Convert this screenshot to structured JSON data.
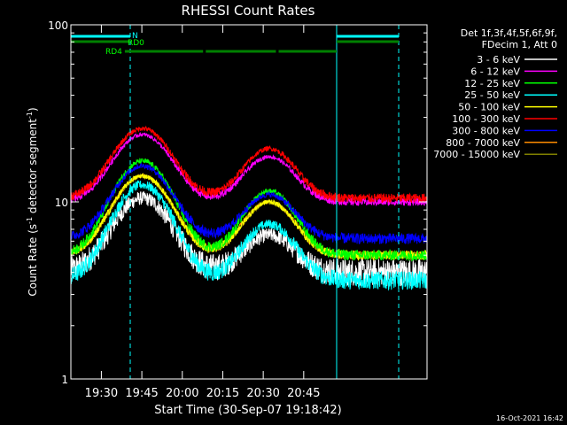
{
  "chart_data": {
    "type": "line",
    "title": "RHESSI Count Rates",
    "xlabel": "Start Time (30-Sep-07 19:18:42)",
    "ylabel_main": "Count Rate (s",
    "ylabel_sup": "-1",
    "ylabel_end": " detector segment",
    "ylabel_sup2": "-1",
    "ylabel_close": ")",
    "yscale": "log",
    "ylim": [
      1,
      100
    ],
    "y_ticks": [
      {
        "value": 1,
        "label": "1"
      },
      {
        "value": 10,
        "label": "10"
      },
      {
        "value": 100,
        "label": "100"
      }
    ],
    "x_range_min": [
      0,
      132
    ],
    "x_ticks": [
      {
        "min": 11.3,
        "label": "19:30"
      },
      {
        "min": 26.3,
        "label": "19:45"
      },
      {
        "min": 41.3,
        "label": "20:00"
      },
      {
        "min": 56.3,
        "label": "20:15"
      },
      {
        "min": 71.3,
        "label": "20:30"
      },
      {
        "min": 86.3,
        "label": "20:45"
      }
    ],
    "legend_header": [
      "Det 1f,3f,4f,5f,6f,9f,",
      "FDecim 1, Att 0"
    ],
    "legend_placement": "right",
    "series": [
      {
        "name": "3 - 6 keV",
        "color": "#ffffff",
        "base": 4.0,
        "peak1": 10.5,
        "peak2": 6.5,
        "noise": 0.18
      },
      {
        "name": "6 - 12 keV",
        "color": "#ff00ff",
        "base": 10.0,
        "peak1": 24,
        "peak2": 18,
        "noise": 0.05
      },
      {
        "name": "12 - 25 keV",
        "color": "#00ff00",
        "base": 5.0,
        "peak1": 17,
        "peak2": 11.5,
        "noise": 0.07
      },
      {
        "name": "25 - 50 keV",
        "color": "#00ffff",
        "base": 3.6,
        "peak1": 12.5,
        "peak2": 7.5,
        "noise": 0.12
      },
      {
        "name": "50 - 100 keV",
        "color": "#ffff00",
        "base": 5.0,
        "peak1": 14,
        "peak2": 10,
        "noise": 0.06
      },
      {
        "name": "100 - 300 keV",
        "color": "#ff0000",
        "base": 10.5,
        "peak1": 26,
        "peak2": 20,
        "noise": 0.06
      },
      {
        "name": "300 - 800 keV",
        "color": "#0000ff",
        "base": 6.2,
        "peak1": 16,
        "peak2": 11,
        "noise": 0.07
      },
      {
        "name": "800 - 7000 keV",
        "color": "#ff8c00",
        "base": 5.0,
        "peak1": 14,
        "peak2": 10,
        "noise": 0.05
      },
      {
        "name": "7000 - 15000 keV",
        "color": "#808000",
        "base": 5.0,
        "peak1": 14,
        "peak2": 10,
        "noise": 0.05
      }
    ],
    "peaks_min": [
      26.5,
      73.5
    ],
    "peak_widths_min": [
      9.5,
      8.5
    ],
    "vertical_markers": [
      {
        "min": 0.0,
        "style": "solid",
        "color": "#00ffff"
      },
      {
        "min": 22.0,
        "style": "dashed",
        "color": "#00ffff"
      },
      {
        "min": 98.5,
        "style": "solid",
        "color": "#00ffff"
      },
      {
        "min": 121.5,
        "style": "dashed",
        "color": "#00ffff"
      }
    ],
    "flag_bars": {
      "N": {
        "label": "N",
        "color": "#00ffff",
        "segments": [
          [
            0,
            22
          ],
          [
            98.5,
            121.5
          ]
        ]
      },
      "RD0": {
        "label": "RD0",
        "color": "#008000",
        "segments": [
          [
            0,
            22
          ],
          [
            98.5,
            121.5
          ]
        ]
      },
      "RD4": {
        "label": "RD4",
        "color": "#008000",
        "segments": [
          [
            20,
            49
          ],
          [
            50,
            76
          ],
          [
            77,
            98.5
          ]
        ]
      }
    }
  },
  "timestamp": "16-Oct-2021 16:42"
}
